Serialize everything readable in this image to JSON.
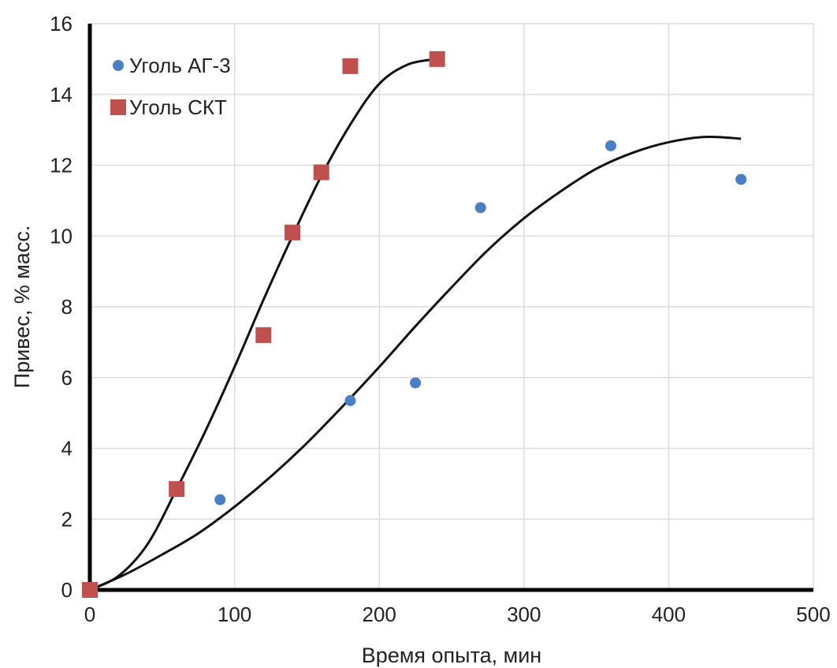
{
  "chart_data": {
    "type": "scatter",
    "title": "",
    "xlabel": "Время опыта, мин",
    "ylabel": "Привес, % масс.",
    "xlim": [
      0,
      500
    ],
    "ylim": [
      0,
      16
    ],
    "x_ticks": [
      0,
      100,
      200,
      300,
      400,
      500
    ],
    "y_ticks": [
      0,
      2,
      4,
      6,
      8,
      10,
      12,
      14,
      16
    ],
    "grid": true,
    "legend_position": "top-left",
    "series": [
      {
        "name": "Уголь АГ-3",
        "marker": "circle",
        "color": "#4a7ec5",
        "x": [
          0,
          90,
          180,
          225,
          270,
          360,
          450
        ],
        "y": [
          0,
          2.55,
          5.35,
          5.85,
          10.8,
          12.55,
          11.6
        ],
        "trend": {
          "x": [
            0,
            25,
            50,
            75,
            100,
            125,
            150,
            175,
            200,
            225,
            250,
            275,
            300,
            325,
            350,
            375,
            400,
            425,
            450
          ],
          "y": [
            0,
            0.45,
            1.0,
            1.6,
            2.35,
            3.2,
            4.15,
            5.2,
            6.3,
            7.45,
            8.55,
            9.6,
            10.5,
            11.25,
            11.9,
            12.35,
            12.65,
            12.8,
            12.75
          ]
        }
      },
      {
        "name": "Уголь СКТ",
        "marker": "square",
        "color": "#c0504d",
        "x": [
          0,
          60,
          120,
          140,
          160,
          180,
          240
        ],
        "y": [
          0,
          2.85,
          7.2,
          10.1,
          11.8,
          14.8,
          15.0
        ],
        "trend": {
          "x": [
            0,
            20,
            40,
            60,
            80,
            100,
            120,
            140,
            160,
            180,
            200,
            220,
            240
          ],
          "y": [
            0,
            0.4,
            1.3,
            2.85,
            4.5,
            6.3,
            8.2,
            10.0,
            11.7,
            13.15,
            14.3,
            14.85,
            15.0
          ]
        }
      }
    ]
  }
}
